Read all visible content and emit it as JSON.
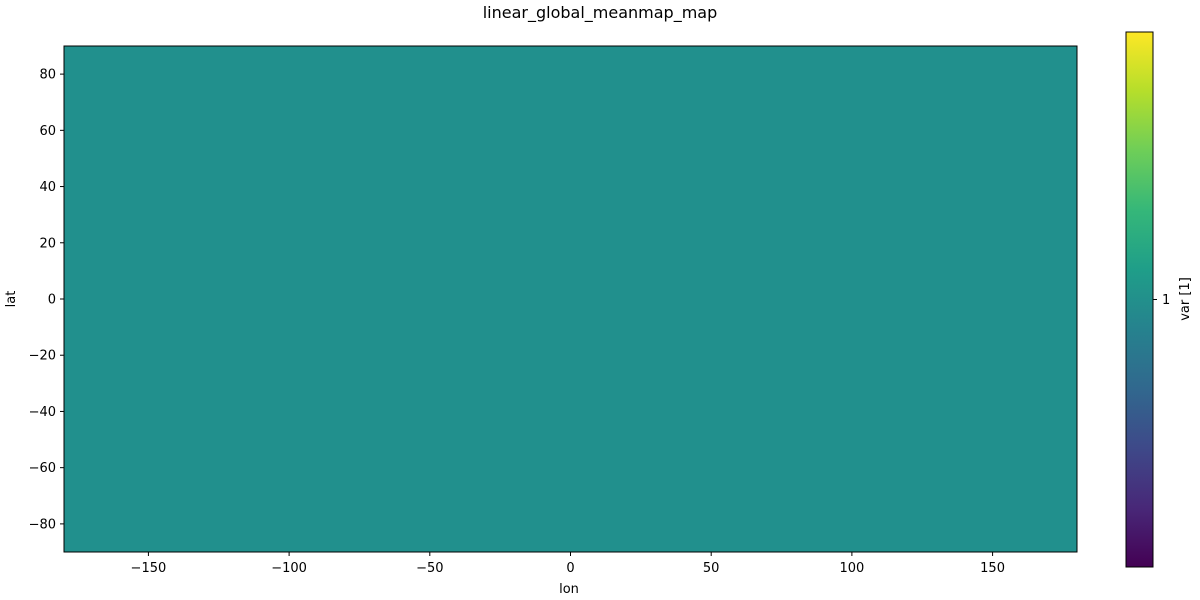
{
  "chart_data": {
    "type": "heatmap",
    "title": "linear_global_meanmap_map",
    "xlabel": "lon",
    "ylabel": "lat",
    "xlim": [
      -180,
      180
    ],
    "ylim": [
      -90,
      90
    ],
    "x_ticks": [
      -150,
      -100,
      -50,
      0,
      50,
      100,
      150
    ],
    "x_tick_labels": [
      "−150",
      "−100",
      "−50",
      "0",
      "50",
      "100",
      "150"
    ],
    "y_ticks": [
      -80,
      -60,
      -40,
      -20,
      0,
      20,
      40,
      60,
      80
    ],
    "y_tick_labels": [
      "−80",
      "−60",
      "−40",
      "−20",
      "0",
      "20",
      "40",
      "60",
      "80"
    ],
    "grid": false,
    "field": {
      "value": 1,
      "lon_range": [
        -180,
        180
      ],
      "lat_range": [
        -90,
        90
      ]
    },
    "colorbar": {
      "label": "var [1]",
      "colormap": "viridis",
      "range": [
        0.9,
        1.1
      ],
      "ticks": [
        1
      ],
      "tick_labels": [
        "1"
      ]
    },
    "colors": {
      "field_fill": "#21908d",
      "viridis_stops": [
        "#440154",
        "#482878",
        "#3e4989",
        "#31688e",
        "#26828e",
        "#1f9e89",
        "#35b779",
        "#6ece58",
        "#b5de2b",
        "#fde725"
      ]
    }
  }
}
